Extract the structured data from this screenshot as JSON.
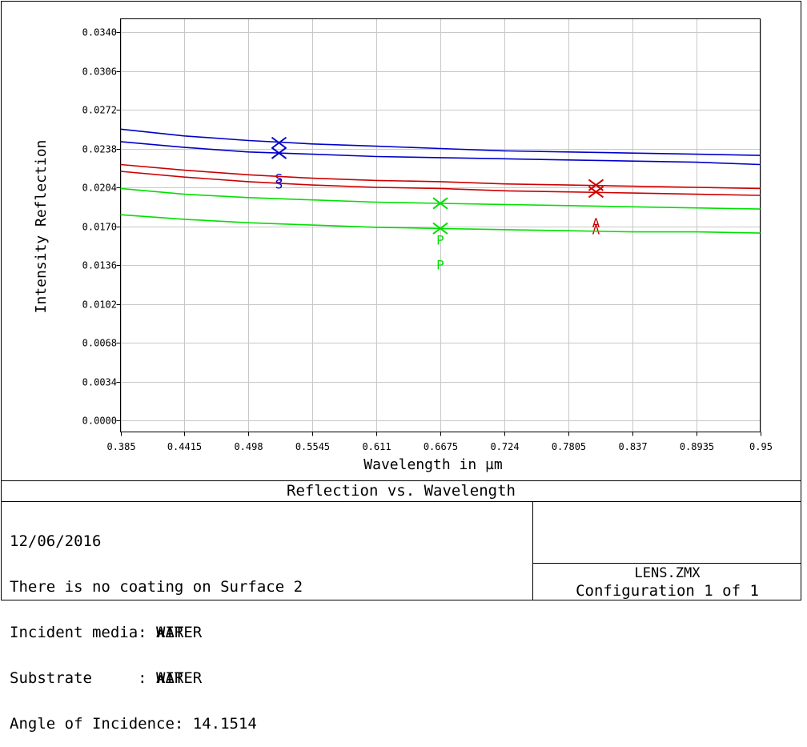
{
  "chart_data": {
    "type": "line",
    "title": "Reflection vs. Wavelength",
    "xlabel": "Wavelength in µm",
    "ylabel": "Intensity Reflection",
    "xlim": [
      0.385,
      0.95
    ],
    "ylim": [
      0.0,
      0.034
    ],
    "x_ticks": [
      "0.385",
      "0.4415",
      "0.498",
      "0.5545",
      "0.611",
      "0.6675",
      "0.724",
      "0.7805",
      "0.837",
      "0.8935",
      "0.95"
    ],
    "y_ticks": [
      "0.0000",
      "0.0034",
      "0.0068",
      "0.0102",
      "0.0136",
      "0.0170",
      "0.0204",
      "0.0238",
      "0.0272",
      "0.0306",
      "0.0340"
    ],
    "grid": true,
    "series": [
      {
        "name": "S",
        "color": "#0000c8",
        "x": [
          0.385,
          0.4415,
          0.498,
          0.5545,
          0.611,
          0.6675,
          0.724,
          0.7805,
          0.837,
          0.8935,
          0.95
        ],
        "values": [
          0.0255,
          0.0249,
          0.0245,
          0.0242,
          0.024,
          0.0238,
          0.0236,
          0.0235,
          0.0234,
          0.0233,
          0.0232
        ],
        "marker": {
          "x": 0.525,
          "y": 0.0243,
          "label_y": 0.0208
        }
      },
      {
        "name": "S",
        "color": "#0000c8",
        "x": [
          0.385,
          0.4415,
          0.498,
          0.5545,
          0.611,
          0.6675,
          0.724,
          0.7805,
          0.837,
          0.8935,
          0.95
        ],
        "values": [
          0.0244,
          0.0239,
          0.0235,
          0.0233,
          0.0231,
          0.023,
          0.0229,
          0.0228,
          0.0227,
          0.0226,
          0.0224
        ],
        "marker": {
          "x": 0.525,
          "y": 0.0234,
          "label_y": 0.0203
        }
      },
      {
        "name": "A",
        "color": "#cc0000",
        "x": [
          0.385,
          0.4415,
          0.498,
          0.5545,
          0.611,
          0.6675,
          0.724,
          0.7805,
          0.837,
          0.8935,
          0.95
        ],
        "values": [
          0.0224,
          0.0219,
          0.0215,
          0.0212,
          0.021,
          0.0209,
          0.0207,
          0.0206,
          0.0205,
          0.0204,
          0.0203
        ],
        "marker": {
          "x": 0.805,
          "y": 0.0206,
          "label_y": 0.0169
        }
      },
      {
        "name": "A",
        "color": "#cc0000",
        "x": [
          0.385,
          0.4415,
          0.498,
          0.5545,
          0.611,
          0.6675,
          0.724,
          0.7805,
          0.837,
          0.8935,
          0.95
        ],
        "values": [
          0.0218,
          0.0213,
          0.0209,
          0.0206,
          0.0204,
          0.0203,
          0.0201,
          0.02,
          0.0199,
          0.0198,
          0.0197
        ],
        "marker": {
          "x": 0.805,
          "y": 0.02,
          "label_y": 0.0163
        }
      },
      {
        "name": "P",
        "color": "#00e000",
        "x": [
          0.385,
          0.4415,
          0.498,
          0.5545,
          0.611,
          0.6675,
          0.724,
          0.7805,
          0.837,
          0.8935,
          0.95
        ],
        "values": [
          0.0203,
          0.0198,
          0.0195,
          0.0193,
          0.0191,
          0.019,
          0.0189,
          0.0188,
          0.0187,
          0.0186,
          0.0185
        ],
        "marker": {
          "x": 0.6675,
          "y": 0.019,
          "label_y": 0.0154
        }
      },
      {
        "name": "P",
        "color": "#00e000",
        "x": [
          0.385,
          0.4415,
          0.498,
          0.5545,
          0.611,
          0.6675,
          0.724,
          0.7805,
          0.837,
          0.8935,
          0.95
        ],
        "values": [
          0.018,
          0.0176,
          0.0173,
          0.0171,
          0.0169,
          0.0168,
          0.0167,
          0.0166,
          0.0165,
          0.0165,
          0.0164
        ],
        "marker": {
          "x": 0.6675,
          "y": 0.0168,
          "label_y": 0.0132
        }
      }
    ]
  },
  "info": {
    "date": "12/06/2016",
    "coating_line": "There is no coating on Surface 2",
    "incident_label": "Incident media: ",
    "incident_values": [
      "AIR",
      "WATER"
    ],
    "substrate_label": "Substrate     : ",
    "substrate_values": [
      "AIR",
      "WATER"
    ],
    "angle_line": "Angle of Incidence: 14.1514"
  },
  "footer": {
    "lens_name": "LENS.ZMX",
    "configuration": "Configuration 1 of 1"
  }
}
